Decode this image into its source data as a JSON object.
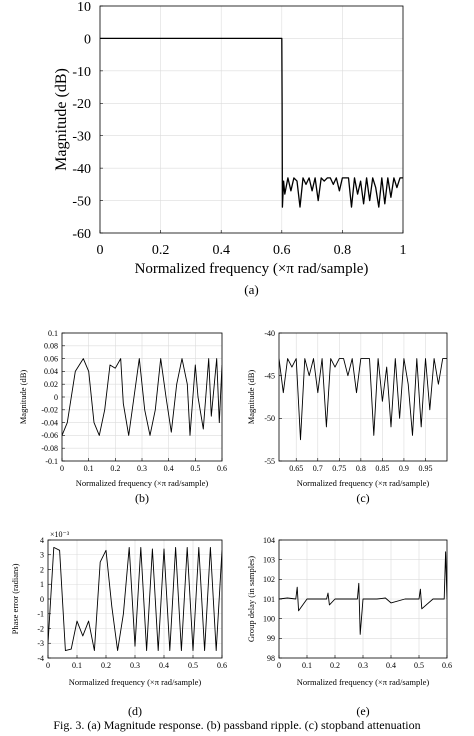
{
  "chart_data": [
    {
      "id": "a",
      "type": "line",
      "panel_label": "(a)",
      "xlabel": "Normalized frequency (×π rad/sample)",
      "ylabel": "Magnitude (dB)",
      "xlim": [
        0,
        1
      ],
      "ylim": [
        -60,
        10
      ],
      "xticks": [
        0,
        0.2,
        0.4,
        0.6,
        0.8,
        1
      ],
      "xtick_labels": [
        "0",
        "0.2",
        "0.4",
        "0.6",
        "0.8",
        "1"
      ],
      "yticks": [
        10,
        0,
        -10,
        -20,
        -30,
        -40,
        -50,
        -60
      ],
      "ytick_labels": [
        "10",
        "0",
        "-10",
        "-20",
        "-30",
        "-40",
        "-50",
        "-60"
      ],
      "grid": true,
      "series": [
        {
          "x": [
            0,
            0.05,
            0.1,
            0.15,
            0.2,
            0.25,
            0.3,
            0.35,
            0.4,
            0.45,
            0.5,
            0.55,
            0.6,
            0.601,
            0.602,
            0.606,
            0.61,
            0.62,
            0.63,
            0.64,
            0.65,
            0.66,
            0.67,
            0.68,
            0.69,
            0.7,
            0.71,
            0.72,
            0.73,
            0.74,
            0.75,
            0.76,
            0.77,
            0.78,
            0.79,
            0.8,
            0.81,
            0.82,
            0.83,
            0.84,
            0.85,
            0.86,
            0.87,
            0.88,
            0.89,
            0.9,
            0.91,
            0.92,
            0.93,
            0.94,
            0.95,
            0.96,
            0.97,
            0.98,
            0.99,
            1.0
          ],
          "y": [
            0,
            0,
            0,
            0,
            0,
            0,
            0,
            0,
            0,
            0,
            0,
            0,
            0,
            -20,
            -52,
            -44,
            -48,
            -43,
            -47,
            -43,
            -44,
            -52,
            -43,
            -45,
            -43,
            -47,
            -43,
            -50,
            -43,
            -44,
            -43,
            -43,
            -45,
            -43,
            -47,
            -43,
            -43,
            -43,
            -52,
            -43,
            -48,
            -44,
            -51,
            -43,
            -50,
            -43,
            -46,
            -52,
            -43,
            -51,
            -43,
            -49,
            -43,
            -46,
            -43,
            -43
          ]
        }
      ]
    },
    {
      "id": "b",
      "type": "line",
      "panel_label": "(b)",
      "xlabel": "Normalized frequency (×π rad/sample)",
      "ylabel": "Magnitude (dB)",
      "xlim": [
        0,
        0.6
      ],
      "ylim": [
        -0.1,
        0.1
      ],
      "xticks": [
        0,
        0.1,
        0.2,
        0.3,
        0.4,
        0.5,
        0.6
      ],
      "xtick_labels": [
        "0",
        "0.1",
        "0.2",
        "0.3",
        "0.4",
        "0.5",
        "0.6"
      ],
      "yticks": [
        0.1,
        0.08,
        0.06,
        0.04,
        0.02,
        0,
        -0.02,
        -0.04,
        -0.06,
        -0.08,
        -0.1
      ],
      "ytick_labels": [
        "0.1",
        "0.08",
        "0.06",
        "0.04",
        "0.02",
        "0",
        "-0.02",
        "-0.04",
        "-0.06",
        "-0.08",
        "-0.1"
      ],
      "grid": true,
      "series": [
        {
          "x": [
            0,
            0.02,
            0.05,
            0.08,
            0.1,
            0.12,
            0.14,
            0.16,
            0.18,
            0.2,
            0.22,
            0.23,
            0.25,
            0.27,
            0.29,
            0.31,
            0.33,
            0.35,
            0.37,
            0.39,
            0.41,
            0.43,
            0.45,
            0.47,
            0.48,
            0.5,
            0.51,
            0.53,
            0.55,
            0.56,
            0.58,
            0.59,
            0.6
          ],
          "y": [
            -0.06,
            -0.04,
            0.04,
            0.06,
            0.04,
            -0.04,
            -0.06,
            -0.02,
            0.05,
            0.045,
            0.06,
            -0.01,
            -0.06,
            0.0,
            0.06,
            -0.02,
            -0.06,
            -0.02,
            0.06,
            0.0,
            -0.055,
            0.02,
            0.06,
            0.02,
            -0.06,
            0.05,
            0.0,
            -0.05,
            0.06,
            -0.03,
            0.06,
            -0.04,
            0.05
          ]
        }
      ]
    },
    {
      "id": "c",
      "type": "line",
      "panel_label": "(c)",
      "xlabel": "Normalized frequency (×π rad/sample)",
      "ylabel": "Magnitude (dB)",
      "xlim": [
        0.61,
        1
      ],
      "ylim": [
        -55,
        -40
      ],
      "xticks": [
        0.65,
        0.7,
        0.75,
        0.8,
        0.85,
        0.9,
        0.95
      ],
      "xtick_labels": [
        "0.65",
        "0.7",
        "0.75",
        "0.8",
        "0.85",
        "0.9",
        "0.95"
      ],
      "yticks": [
        -40,
        -45,
        -50,
        -55
      ],
      "ytick_labels": [
        "-40",
        "-45",
        "-50",
        "-55"
      ],
      "grid": true,
      "series": [
        {
          "x": [
            0.61,
            0.62,
            0.63,
            0.64,
            0.65,
            0.66,
            0.67,
            0.68,
            0.69,
            0.7,
            0.71,
            0.72,
            0.73,
            0.74,
            0.75,
            0.76,
            0.77,
            0.78,
            0.79,
            0.8,
            0.81,
            0.82,
            0.83,
            0.84,
            0.85,
            0.86,
            0.87,
            0.88,
            0.89,
            0.9,
            0.91,
            0.92,
            0.93,
            0.94,
            0.95,
            0.96,
            0.97,
            0.98,
            0.99,
            1.0
          ],
          "y": [
            -43,
            -47,
            -43,
            -44,
            -43,
            -52.5,
            -43,
            -45,
            -43,
            -47,
            -43,
            -51,
            -43,
            -44,
            -43,
            -43,
            -45,
            -43,
            -47,
            -43,
            -43,
            -43,
            -52,
            -43,
            -48,
            -44,
            -51,
            -43,
            -50,
            -43,
            -46,
            -52,
            -43,
            -51,
            -43,
            -49,
            -43,
            -46,
            -43,
            -43
          ]
        }
      ]
    },
    {
      "id": "d",
      "type": "line",
      "panel_label": "(d)",
      "xlabel": "Normalized frequency (×π rad/sample)",
      "ylabel": "Phase error (radians)",
      "multiplier_label": "×10⁻³",
      "xlim": [
        0,
        0.6
      ],
      "ylim": [
        -4,
        4
      ],
      "xticks": [
        0,
        0.1,
        0.2,
        0.3,
        0.4,
        0.5,
        0.6
      ],
      "xtick_labels": [
        "0",
        "0.1",
        "0.2",
        "0.3",
        "0.4",
        "0.5",
        "0.6"
      ],
      "yticks": [
        4,
        3,
        2,
        1,
        0,
        -1,
        -2,
        -3,
        -4
      ],
      "ytick_labels": [
        "4",
        "3",
        "2",
        "1",
        "0",
        "-1",
        "-2",
        "-3",
        "-4"
      ],
      "grid": true,
      "series": [
        {
          "x": [
            0,
            0.02,
            0.04,
            0.06,
            0.08,
            0.1,
            0.12,
            0.14,
            0.16,
            0.18,
            0.2,
            0.22,
            0.24,
            0.26,
            0.28,
            0.3,
            0.32,
            0.34,
            0.36,
            0.38,
            0.4,
            0.42,
            0.44,
            0.46,
            0.48,
            0.5,
            0.52,
            0.54,
            0.56,
            0.58,
            0.6
          ],
          "y": [
            -3,
            3.5,
            3.3,
            -3.5,
            -3.4,
            -1.5,
            -2.5,
            -1.5,
            -3.5,
            2.5,
            3.3,
            -0.5,
            -3.5,
            -1,
            3.5,
            -3.2,
            3.5,
            -3.5,
            3.4,
            -3.5,
            3.4,
            -3.5,
            3.5,
            -3.5,
            3.5,
            -3.5,
            3.5,
            -3.5,
            3.5,
            -3.5,
            3.3
          ]
        }
      ]
    },
    {
      "id": "e",
      "type": "line",
      "panel_label": "(e)",
      "xlabel": "Normalized frequency (×π rad/sample)",
      "ylabel": "Group delay (in samples)",
      "xlim": [
        0,
        0.6
      ],
      "ylim": [
        98,
        104
      ],
      "xticks": [
        0,
        0.1,
        0.2,
        0.3,
        0.4,
        0.5,
        0.6
      ],
      "xtick_labels": [
        "0",
        "0.1",
        "0.2",
        "0.3",
        "0.4",
        "0.5",
        "0.6"
      ],
      "yticks": [
        104,
        103,
        102,
        101,
        100,
        99,
        98
      ],
      "ytick_labels": [
        "104",
        "103",
        "102",
        "101",
        "100",
        "99",
        "98"
      ],
      "grid": true,
      "series": [
        {
          "x": [
            0,
            0.03,
            0.06,
            0.065,
            0.07,
            0.1,
            0.15,
            0.17,
            0.175,
            0.18,
            0.2,
            0.25,
            0.28,
            0.285,
            0.29,
            0.3,
            0.35,
            0.38,
            0.4,
            0.45,
            0.5,
            0.505,
            0.51,
            0.55,
            0.59,
            0.595,
            0.6
          ],
          "y": [
            101,
            101.05,
            101,
            101.6,
            100.4,
            101,
            101,
            101,
            101.3,
            100.7,
            101,
            101,
            101,
            101.8,
            99.2,
            101,
            101,
            101.05,
            100.8,
            101,
            101,
            101.5,
            100.5,
            101,
            101,
            103.4,
            101
          ]
        }
      ]
    }
  ],
  "caption": "Fig. 3.  (a) Magnitude response. (b) passband ripple. (c) stopband attenuation"
}
